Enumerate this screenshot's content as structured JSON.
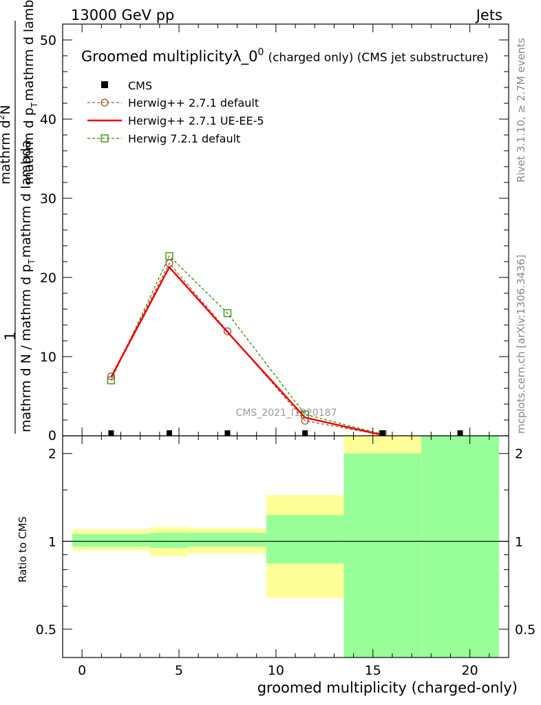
{
  "header": {
    "left": "13000 GeV pp",
    "right": "Jets"
  },
  "side_labels": {
    "rivet": "Rivet 3.1.10, ≥ 2.7M events",
    "mcplots": "mcplots.cern.ch [arXiv:1306.3436]"
  },
  "watermark": "CMS_2021_I1920187",
  "colors": {
    "cms": "#000000",
    "herwig_default": "#a0522d",
    "herwig_ueee5": "#ee0000",
    "herwig7": "#2e8b00",
    "band_green": "#99ff99",
    "band_yellow": "#ffff99"
  },
  "chart_data": [
    {
      "type": "line",
      "title_main": "Groomed multiplicityλ_0",
      "title_sup": "0",
      "title_sub": "(charged only) (CMS jet substructure)",
      "ylabel_top": "1",
      "ylabel_bottom": "mathrm d N / mathrm d p_T mathrm d lambda",
      "ylabel_bottom_display": "mathrm d N / mathrm d p",
      "ylabel_bottom_tail": "mathrm d lambda",
      "ylabel_num_display": "mathrm d",
      "ylabel_num_sup": "2",
      "ylabel_num_tail": "N",
      "ylabel_den_display": "mathrm d p",
      "ylabel_den_tail": "mathrm d lambda",
      "ylabel_sub": "T",
      "xlim": [
        -1,
        22
      ],
      "ylim": [
        0,
        52
      ],
      "yticks": [
        "10",
        "20",
        "30",
        "40",
        "50"
      ],
      "ytick_zero": "0",
      "legend": [
        {
          "key": "cms",
          "label": "CMS"
        },
        {
          "key": "herwig_default",
          "label": "Herwig++ 2.7.1 default"
        },
        {
          "key": "herwig_ueee5",
          "label": "Herwig++ 2.7.1 UE-EE-5"
        },
        {
          "key": "herwig7",
          "label": "Herwig 7.2.1 default"
        }
      ],
      "x": [
        1.5,
        4.5,
        7.5,
        11.5,
        15.5,
        19.5
      ],
      "series": [
        {
          "name": "CMS",
          "key": "cms",
          "values": [
            0.05,
            0.2,
            0.1,
            0.05,
            0.0,
            0.05
          ]
        },
        {
          "name": "Herwig++ 2.7.1 default",
          "key": "herwig_default",
          "values": [
            7.5,
            21.8,
            13.2,
            1.9,
            0.1,
            null
          ]
        },
        {
          "name": "Herwig++ 2.7.1 UE-EE-5",
          "key": "herwig_ueee5",
          "values": [
            7.4,
            21.3,
            13.1,
            2.3,
            0.1,
            null
          ]
        },
        {
          "name": "Herwig 7.2.1 default",
          "key": "herwig7",
          "values": [
            7.0,
            22.7,
            15.5,
            2.7,
            0.2,
            null
          ]
        }
      ]
    },
    {
      "type": "area",
      "ylabel": "Ratio to CMS",
      "xlabel": "groomed multiplicity (charged-only)",
      "xlim": [
        -1,
        22
      ],
      "ylim": [
        0.4,
        2.3
      ],
      "log_y": true,
      "xticks": [
        "0",
        "5",
        "10",
        "15",
        "20"
      ],
      "yticks": [
        "0.5",
        "1",
        "2"
      ],
      "bins": [
        {
          "lo": -0.5,
          "hi": 3.5,
          "green": [
            0.96,
            1.06
          ],
          "yellow": [
            0.93,
            1.1
          ]
        },
        {
          "lo": 3.5,
          "hi": 5.5,
          "green": [
            0.95,
            1.07
          ],
          "yellow": [
            0.89,
            1.12
          ]
        },
        {
          "lo": 5.5,
          "hi": 9.5,
          "green": [
            0.96,
            1.07
          ],
          "yellow": [
            0.91,
            1.11
          ]
        },
        {
          "lo": 9.5,
          "hi": 13.5,
          "green": [
            0.84,
            1.23
          ],
          "yellow": [
            0.64,
            1.44
          ]
        },
        {
          "lo": 13.5,
          "hi": 17.5,
          "green": [
            0.35,
            2.0
          ],
          "yellow": [
            0.35,
            2.3
          ]
        },
        {
          "lo": 17.5,
          "hi": 21.5,
          "green": [
            0.35,
            2.3
          ],
          "yellow": [
            0.35,
            2.3
          ]
        }
      ]
    }
  ]
}
